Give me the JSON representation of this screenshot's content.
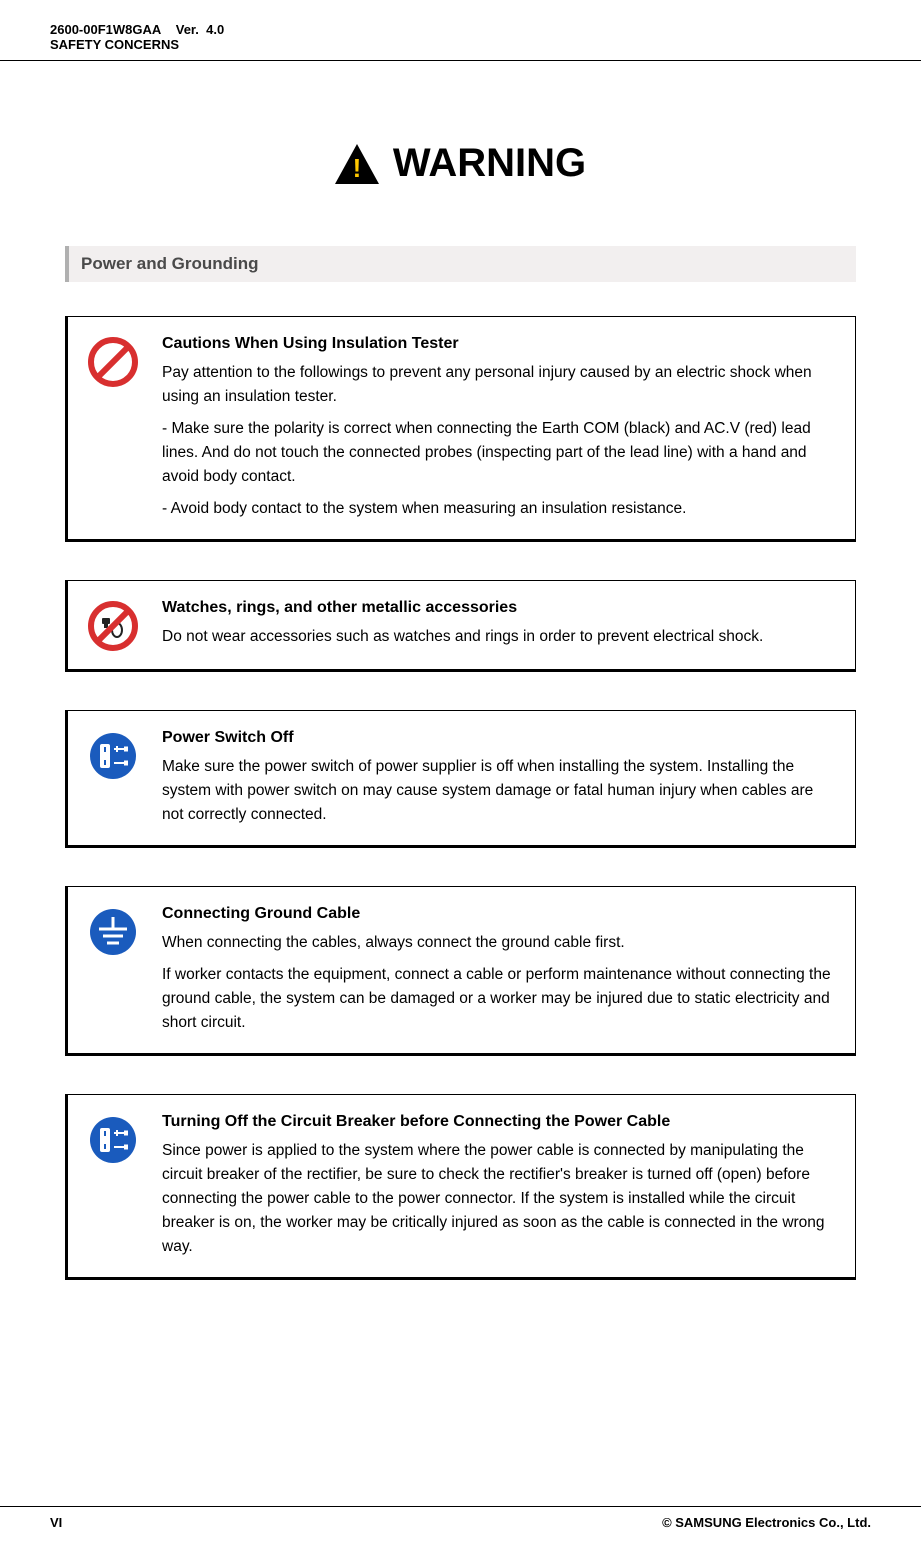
{
  "header": {
    "doc_id": "2600-00F1W8GAA",
    "ver_label": "Ver.",
    "ver_value": "4.0",
    "section": "SAFETY CONCERNS"
  },
  "warning": {
    "title": "WARNING",
    "triangle_fill": "#000000",
    "triangle_bang": "#ffc800"
  },
  "section_heading": "Power and Grounding",
  "colors": {
    "prohibit_red": "#d82f2f",
    "mandatory_blue": "#1a5bbd",
    "section_bg": "#f2efef",
    "section_border": "#b0b0b0"
  },
  "cards": [
    {
      "icon": "prohibit",
      "title": "Cautions When Using Insulation Tester",
      "paras": [
        "Pay attention to the followings to prevent any personal injury caused by an electric shock when using an insulation tester.",
        "- Make sure the polarity is correct when connecting the Earth COM (black) and AC.V (red) lead lines. And do not touch the connected probes (inspecting part of the lead line) with a hand and avoid body contact.",
        "- Avoid body contact to the system when measuring an insulation resistance."
      ]
    },
    {
      "icon": "no-metal",
      "title": "Watches, rings, and other metallic accessories",
      "paras": [
        "Do not wear accessories such as watches and rings in order to prevent electrical shock."
      ]
    },
    {
      "icon": "power-off",
      "title": "Power Switch Off",
      "paras": [
        "Make sure the power switch of power supplier is off when installing the system. Installing the system with power switch on may cause system damage or fatal human injury when cables are not correctly connected."
      ]
    },
    {
      "icon": "ground",
      "title": "Connecting Ground Cable",
      "paras": [
        "When connecting the cables, always connect the ground cable first.",
        "If worker contacts the equipment, connect a cable or perform maintenance without connecting the ground cable, the system can be damaged or a worker may be injured due to static electricity and short circuit."
      ]
    },
    {
      "icon": "power-off",
      "title": "Turning Off the Circuit Breaker before Connecting the Power Cable",
      "paras": [
        "Since power is applied to the system where the power cable is connected by manipulating the circuit breaker of the rectifier, be sure to check the rectifier's breaker is turned off (open) before connecting the power cable to the power connector. If the system is installed while the circuit breaker is on, the worker may be critically injured as soon as the cable is connected in the wrong way."
      ]
    }
  ],
  "footer": {
    "page": "VI",
    "copyright": "© SAMSUNG Electronics Co., Ltd."
  }
}
